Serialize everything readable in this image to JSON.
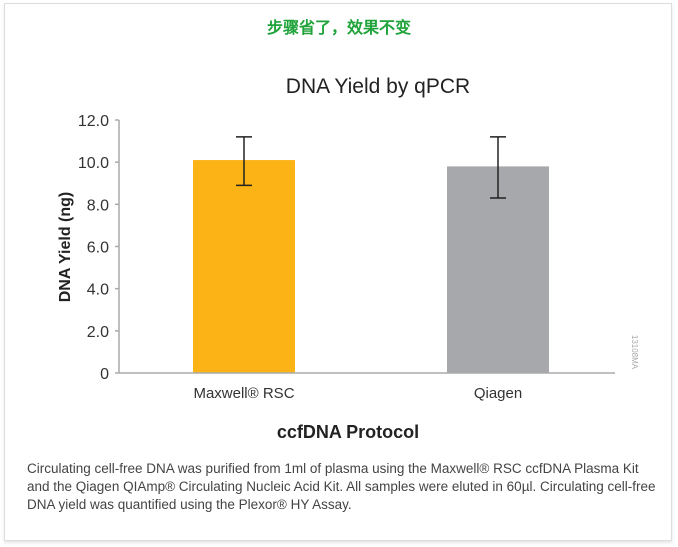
{
  "heading": "步骤省了，效果不变",
  "caption": "Circulating cell-free DNA was purified from 1ml of plasma using the Maxwell® RSC ccfDNA Plasma Kit and the Qiagen QIAmp® Circulating Nucleic Acid Kit. All samples were eluted in 60µl. Circulating cell-free DNA yield was quantified using the Plexor® HY Assay.",
  "figure_code": "13108MA",
  "chart_data": {
    "type": "bar",
    "title": "DNA Yield by qPCR",
    "xlabel": "ccfDNA Protocol",
    "ylabel": "DNA Yield (ng)",
    "ylim": [
      0,
      12
    ],
    "yticks": [
      "0",
      "2.0",
      "4.0",
      "6.0",
      "8.0",
      "10.0",
      "12.0"
    ],
    "categories": [
      "Maxwell® RSC",
      "Qiagen"
    ],
    "values": [
      10.1,
      9.8
    ],
    "error_low": [
      8.9,
      8.3
    ],
    "error_high": [
      11.2,
      11.2
    ],
    "colors": [
      "#fbb316",
      "#a7a8ab"
    ],
    "grid": false,
    "legend": "none"
  }
}
